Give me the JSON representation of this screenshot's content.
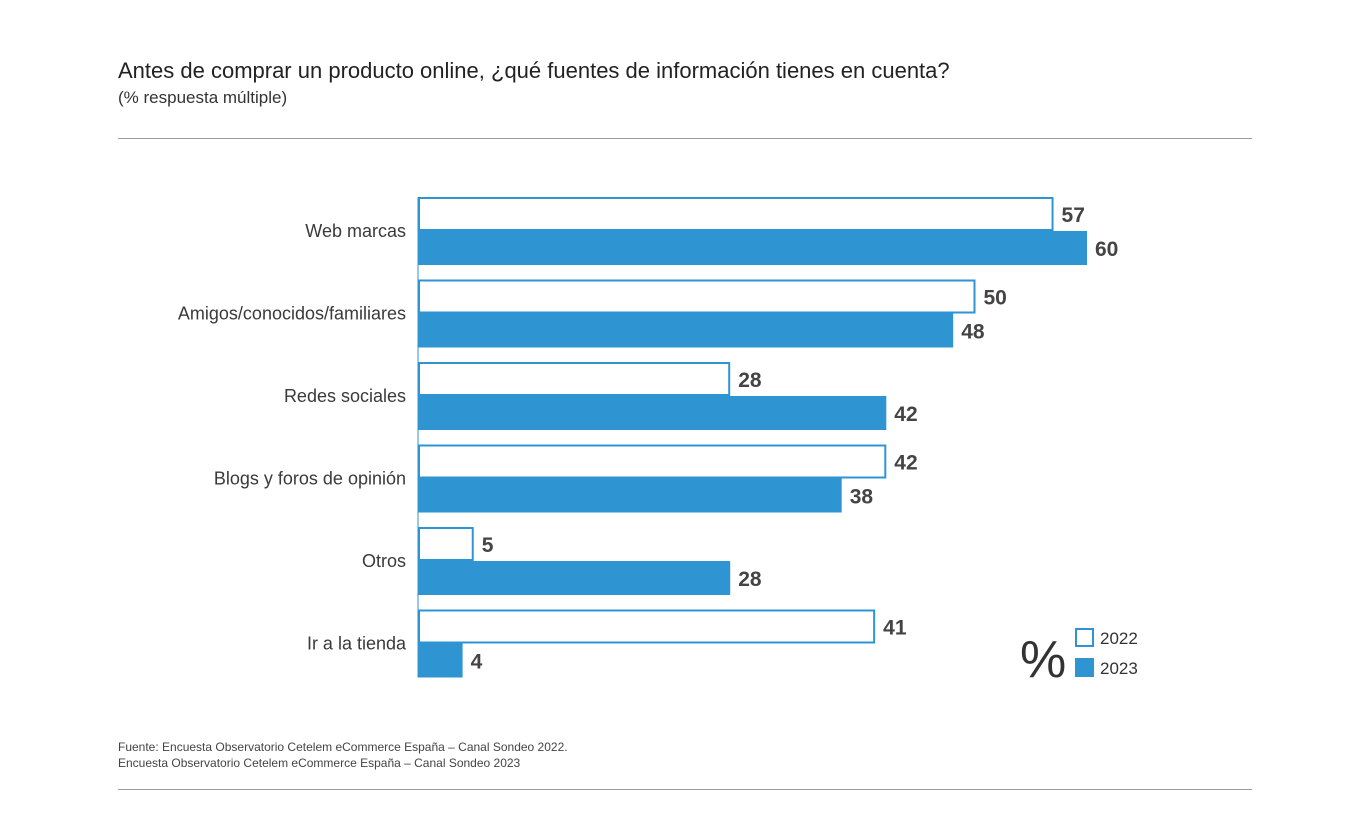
{
  "header": {
    "title": "Antes de comprar un producto online, ¿qué fuentes de información tienes en cuenta?",
    "subtitle": "(% respuesta múltiple)"
  },
  "colors": {
    "series_2022_fill": "#ffffff",
    "series_2022_stroke": "#2f95d2",
    "series_2023_fill": "#2f95d2",
    "rule": "#9a9a9a"
  },
  "chart_data": {
    "type": "bar",
    "orientation": "horizontal",
    "title": "Antes de comprar un producto online, ¿qué fuentes de información tienes en cuenta?",
    "subtitle": "(% respuesta múltiple)",
    "categories": [
      "Web marcas",
      "Amigos/conocidos/familiares",
      "Redes sociales",
      "Blogs y foros de opinión",
      "Otros",
      "Ir a la tienda"
    ],
    "series": [
      {
        "name": "2022",
        "values": [
          57,
          50,
          28,
          42,
          5,
          41
        ]
      },
      {
        "name": "2023",
        "values": [
          60,
          48,
          42,
          38,
          28,
          4
        ]
      }
    ],
    "unit_symbol": "%",
    "xlim": [
      0,
      60
    ],
    "xlabel": "",
    "ylabel": "",
    "grid": false,
    "legend_position": "bottom-right"
  },
  "source": {
    "line1": "Fuente: Encuesta Observatorio Cetelem eCommerce España – Canal Sondeo 2022.",
    "line2": "Encuesta Observatorio Cetelem eCommerce España – Canal Sondeo 2023"
  }
}
